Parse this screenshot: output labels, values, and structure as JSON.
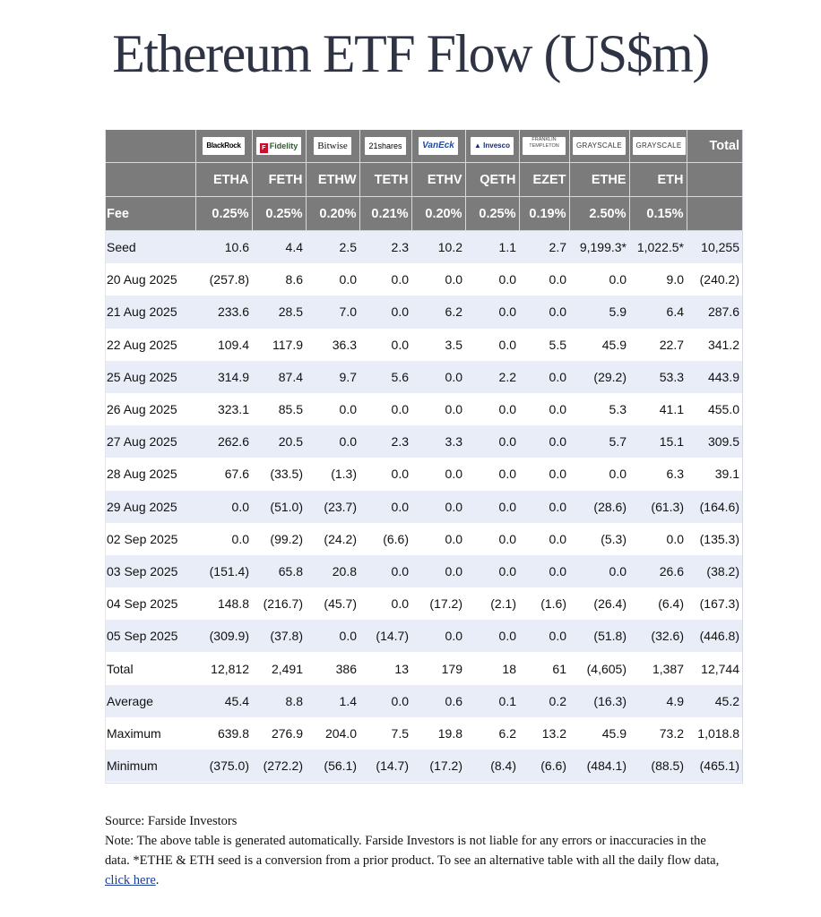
{
  "title": "Ethereum ETF Flow (US$m)",
  "header": {
    "logos": [
      "BlackRock",
      "Fidelity",
      "Bitwise",
      "21shares",
      "VanEck",
      "Invesco",
      "FRANKLIN TEMPLETON",
      "GRAYSCALE",
      "GRAYSCALE"
    ],
    "total_label": "Total",
    "tickers": [
      "ETHA",
      "FETH",
      "ETHW",
      "TETH",
      "ETHV",
      "QETH",
      "EZET",
      "ETHE",
      "ETH"
    ],
    "fee_label": "Fee",
    "fees": [
      "0.25%",
      "0.25%",
      "0.20%",
      "0.21%",
      "0.20%",
      "0.25%",
      "0.19%",
      "2.50%",
      "0.15%"
    ]
  },
  "rows": [
    {
      "label": "Seed",
      "values": [
        "10.6",
        "4.4",
        "2.5",
        "2.3",
        "10.2",
        "1.1",
        "2.7",
        "9,199.3*",
        "1,022.5*",
        "10,255"
      ]
    },
    {
      "label": "20 Aug 2025",
      "values": [
        "(257.8)",
        "8.6",
        "0.0",
        "0.0",
        "0.0",
        "0.0",
        "0.0",
        "0.0",
        "9.0",
        "(240.2)"
      ]
    },
    {
      "label": "21 Aug 2025",
      "values": [
        "233.6",
        "28.5",
        "7.0",
        "0.0",
        "6.2",
        "0.0",
        "0.0",
        "5.9",
        "6.4",
        "287.6"
      ]
    },
    {
      "label": "22 Aug 2025",
      "values": [
        "109.4",
        "117.9",
        "36.3",
        "0.0",
        "3.5",
        "0.0",
        "5.5",
        "45.9",
        "22.7",
        "341.2"
      ]
    },
    {
      "label": "25 Aug 2025",
      "values": [
        "314.9",
        "87.4",
        "9.7",
        "5.6",
        "0.0",
        "2.2",
        "0.0",
        "(29.2)",
        "53.3",
        "443.9"
      ]
    },
    {
      "label": "26 Aug 2025",
      "values": [
        "323.1",
        "85.5",
        "0.0",
        "0.0",
        "0.0",
        "0.0",
        "0.0",
        "5.3",
        "41.1",
        "455.0"
      ]
    },
    {
      "label": "27 Aug 2025",
      "values": [
        "262.6",
        "20.5",
        "0.0",
        "2.3",
        "3.3",
        "0.0",
        "0.0",
        "5.7",
        "15.1",
        "309.5"
      ]
    },
    {
      "label": "28 Aug 2025",
      "values": [
        "67.6",
        "(33.5)",
        "(1.3)",
        "0.0",
        "0.0",
        "0.0",
        "0.0",
        "0.0",
        "6.3",
        "39.1"
      ]
    },
    {
      "label": "29 Aug 2025",
      "values": [
        "0.0",
        "(51.0)",
        "(23.7)",
        "0.0",
        "0.0",
        "0.0",
        "0.0",
        "(28.6)",
        "(61.3)",
        "(164.6)"
      ]
    },
    {
      "label": "02 Sep 2025",
      "values": [
        "0.0",
        "(99.2)",
        "(24.2)",
        "(6.6)",
        "0.0",
        "0.0",
        "0.0",
        "(5.3)",
        "0.0",
        "(135.3)"
      ]
    },
    {
      "label": "03 Sep 2025",
      "values": [
        "(151.4)",
        "65.8",
        "20.8",
        "0.0",
        "0.0",
        "0.0",
        "0.0",
        "0.0",
        "26.6",
        "(38.2)"
      ]
    },
    {
      "label": "04 Sep 2025",
      "values": [
        "148.8",
        "(216.7)",
        "(45.7)",
        "0.0",
        "(17.2)",
        "(2.1)",
        "(1.6)",
        "(26.4)",
        "(6.4)",
        "(167.3)"
      ]
    },
    {
      "label": "05 Sep 2025",
      "values": [
        "(309.9)",
        "(37.8)",
        "0.0",
        "(14.7)",
        "0.0",
        "0.0",
        "0.0",
        "(51.8)",
        "(32.6)",
        "(446.8)"
      ]
    },
    {
      "label": "Total",
      "values": [
        "12,812",
        "2,491",
        "386",
        "13",
        "179",
        "18",
        "61",
        "(4,605)",
        "1,387",
        "12,744"
      ]
    },
    {
      "label": "Average",
      "values": [
        "45.4",
        "8.8",
        "1.4",
        "0.0",
        "0.6",
        "0.1",
        "0.2",
        "(16.3)",
        "4.9",
        "45.2"
      ]
    },
    {
      "label": "Maximum",
      "values": [
        "639.8",
        "276.9",
        "204.0",
        "7.5",
        "19.8",
        "6.2",
        "13.2",
        "45.9",
        "73.2",
        "1,018.8"
      ]
    },
    {
      "label": "Minimum",
      "values": [
        "(375.0)",
        "(272.2)",
        "(56.1)",
        "(14.7)",
        "(17.2)",
        "(8.4)",
        "(6.6)",
        "(484.1)",
        "(88.5)",
        "(465.1)"
      ]
    }
  ],
  "colors": {
    "header_bg": "#7b7b7b",
    "alt_row_bg": "#e9edf7",
    "negative": "#e0261d",
    "title": "#2f3445",
    "link": "#1a3d99"
  },
  "notes": {
    "source": "Source: Farside Investors",
    "note_text": "Note: The above table is generated automatically. Farside Investors is not liable for any errors or inaccuracies in the data. *ETHE & ETH seed is a conversion from a prior product.  To see an alternative table with all the daily flow data, ",
    "link_text": "click here",
    "note_end": "."
  }
}
